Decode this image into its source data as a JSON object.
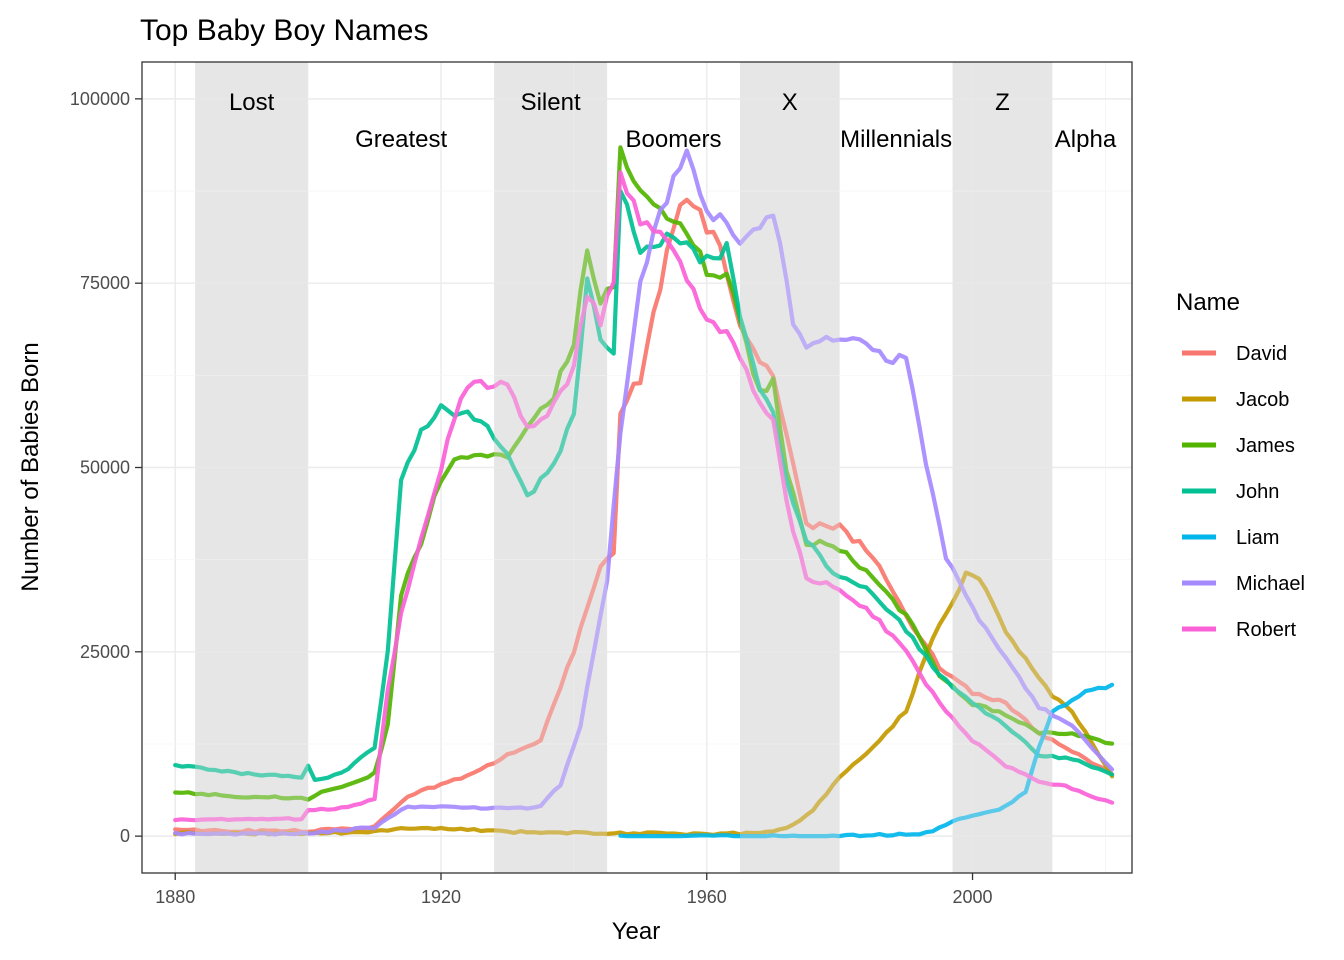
{
  "chart_data": {
    "type": "line",
    "title": "Top Baby Boy Names",
    "xlabel": "Year",
    "ylabel": "Number of Babies Born",
    "xlim": [
      1875,
      2024
    ],
    "ylim": [
      -5000,
      105000
    ],
    "x_ticks": [
      1880,
      1920,
      1960,
      2000
    ],
    "y_ticks": [
      0,
      25000,
      50000,
      75000,
      100000
    ],
    "grid": true,
    "legend": {
      "title": "Name",
      "position": "right"
    },
    "generations": [
      {
        "label": "Lost",
        "start": 1883,
        "end": 1900,
        "shaded": true,
        "row": 1
      },
      {
        "label": "Greatest",
        "start": 1901,
        "end": 1927,
        "shaded": false,
        "row": 2
      },
      {
        "label": "Silent",
        "start": 1928,
        "end": 1945,
        "shaded": true,
        "row": 1
      },
      {
        "label": "Boomers",
        "start": 1946,
        "end": 1964,
        "shaded": false,
        "row": 2
      },
      {
        "label": "X",
        "start": 1965,
        "end": 1980,
        "shaded": true,
        "row": 1
      },
      {
        "label": "Millennials",
        "start": 1981,
        "end": 1996,
        "shaded": false,
        "row": 2
      },
      {
        "label": "Z",
        "start": 1997,
        "end": 2012,
        "shaded": true,
        "row": 1
      },
      {
        "label": "Alpha",
        "start": 2013,
        "end": 2021,
        "shaded": false,
        "row": 2
      }
    ],
    "series": [
      {
        "name": "David",
        "color": "#F8766D",
        "start_year": 1880,
        "points": [
          [
            1880,
            870
          ],
          [
            1890,
            700
          ],
          [
            1900,
            700
          ],
          [
            1910,
            1200
          ],
          [
            1915,
            5500
          ],
          [
            1920,
            7000
          ],
          [
            1925,
            8500
          ],
          [
            1930,
            11000
          ],
          [
            1935,
            13000
          ],
          [
            1940,
            25000
          ],
          [
            1944,
            37000
          ],
          [
            1946,
            38000
          ],
          [
            1947,
            58000
          ],
          [
            1950,
            62000
          ],
          [
            1953,
            75000
          ],
          [
            1956,
            86000
          ],
          [
            1959,
            84000
          ],
          [
            1962,
            80000
          ],
          [
            1965,
            70000
          ],
          [
            1968,
            65000
          ],
          [
            1970,
            62000
          ],
          [
            1972,
            55000
          ],
          [
            1975,
            42000
          ],
          [
            1980,
            42000
          ],
          [
            1985,
            38000
          ],
          [
            1990,
            30000
          ],
          [
            1995,
            23000
          ],
          [
            2000,
            19500
          ],
          [
            2005,
            18000
          ],
          [
            2010,
            14000
          ],
          [
            2015,
            11500
          ],
          [
            2021,
            8500
          ]
        ]
      },
      {
        "name": "Jacob",
        "color": "#C49A00",
        "start_year": 1880,
        "points": [
          [
            1880,
            400
          ],
          [
            1890,
            380
          ],
          [
            1900,
            350
          ],
          [
            1910,
            600
          ],
          [
            1915,
            1100
          ],
          [
            1920,
            1000
          ],
          [
            1925,
            900
          ],
          [
            1930,
            600
          ],
          [
            1940,
            450
          ],
          [
            1950,
            350
          ],
          [
            1960,
            300
          ],
          [
            1968,
            400
          ],
          [
            1972,
            1000
          ],
          [
            1976,
            3500
          ],
          [
            1980,
            8000
          ],
          [
            1985,
            12000
          ],
          [
            1990,
            17000
          ],
          [
            1994,
            27000
          ],
          [
            1997,
            32000
          ],
          [
            1999,
            35500
          ],
          [
            2001,
            35000
          ],
          [
            2005,
            28000
          ],
          [
            2008,
            24000
          ],
          [
            2012,
            19000
          ],
          [
            2015,
            17000
          ],
          [
            2021,
            8000
          ]
        ]
      },
      {
        "name": "James",
        "color": "#53B400",
        "start_year": 1880,
        "points": [
          [
            1880,
            5900
          ],
          [
            1890,
            5400
          ],
          [
            1899,
            5200
          ],
          [
            1900,
            5000
          ],
          [
            1902,
            6000
          ],
          [
            1905,
            6500
          ],
          [
            1910,
            8500
          ],
          [
            1912,
            15000
          ],
          [
            1914,
            33000
          ],
          [
            1917,
            40000
          ],
          [
            1919,
            46000
          ],
          [
            1921,
            50000
          ],
          [
            1925,
            52000
          ],
          [
            1930,
            52000
          ],
          [
            1933,
            55000
          ],
          [
            1937,
            60000
          ],
          [
            1940,
            67000
          ],
          [
            1942,
            80000
          ],
          [
            1944,
            73000
          ],
          [
            1946,
            75000
          ],
          [
            1947,
            94000
          ],
          [
            1950,
            87000
          ],
          [
            1955,
            84000
          ],
          [
            1960,
            77000
          ],
          [
            1963,
            76000
          ],
          [
            1965,
            70000
          ],
          [
            1968,
            60000
          ],
          [
            1970,
            62000
          ],
          [
            1972,
            50000
          ],
          [
            1975,
            40000
          ],
          [
            1980,
            39000
          ],
          [
            1985,
            35000
          ],
          [
            1990,
            30000
          ],
          [
            1995,
            22000
          ],
          [
            2000,
            18000
          ],
          [
            2005,
            16500
          ],
          [
            2010,
            14000
          ],
          [
            2015,
            14000
          ],
          [
            2021,
            12400
          ]
        ]
      },
      {
        "name": "John",
        "color": "#00C094",
        "start_year": 1880,
        "points": [
          [
            1880,
            9600
          ],
          [
            1890,
            8500
          ],
          [
            1899,
            8000
          ],
          [
            1900,
            9500
          ],
          [
            1901,
            7500
          ],
          [
            1905,
            8500
          ],
          [
            1910,
            12000
          ],
          [
            1912,
            25000
          ],
          [
            1914,
            48000
          ],
          [
            1917,
            55000
          ],
          [
            1920,
            58000
          ],
          [
            1925,
            57000
          ],
          [
            1930,
            52000
          ],
          [
            1933,
            46000
          ],
          [
            1937,
            50000
          ],
          [
            1940,
            57000
          ],
          [
            1942,
            75000
          ],
          [
            1944,
            68000
          ],
          [
            1946,
            65000
          ],
          [
            1947,
            87000
          ],
          [
            1950,
            80000
          ],
          [
            1955,
            81000
          ],
          [
            1960,
            78000
          ],
          [
            1963,
            80000
          ],
          [
            1965,
            70000
          ],
          [
            1968,
            60000
          ],
          [
            1970,
            58000
          ],
          [
            1972,
            48000
          ],
          [
            1975,
            40000
          ],
          [
            1980,
            35000
          ],
          [
            1985,
            33000
          ],
          [
            1990,
            28000
          ],
          [
            1995,
            22000
          ],
          [
            2000,
            18000
          ],
          [
            2005,
            15000
          ],
          [
            2010,
            11000
          ],
          [
            2015,
            10500
          ],
          [
            2021,
            8300
          ]
        ]
      },
      {
        "name": "Liam",
        "color": "#00B6EB",
        "start_year": 1947,
        "points": [
          [
            1947,
            0
          ],
          [
            1960,
            0
          ],
          [
            1980,
            0
          ],
          [
            1993,
            400
          ],
          [
            1997,
            2000
          ],
          [
            2000,
            2700
          ],
          [
            2005,
            4000
          ],
          [
            2008,
            6000
          ],
          [
            2010,
            12000
          ],
          [
            2012,
            17000
          ],
          [
            2015,
            18500
          ],
          [
            2018,
            20000
          ],
          [
            2021,
            20300
          ]
        ]
      },
      {
        "name": "Michael",
        "color": "#A58AFF",
        "start_year": 1880,
        "points": [
          [
            1880,
            350
          ],
          [
            1900,
            350
          ],
          [
            1910,
            1200
          ],
          [
            1915,
            4000
          ],
          [
            1920,
            4000
          ],
          [
            1925,
            3800
          ],
          [
            1930,
            3700
          ],
          [
            1935,
            4000
          ],
          [
            1938,
            7000
          ],
          [
            1941,
            15000
          ],
          [
            1943,
            25000
          ],
          [
            1945,
            35000
          ],
          [
            1947,
            55000
          ],
          [
            1950,
            75000
          ],
          [
            1953,
            85000
          ],
          [
            1957,
            92500
          ],
          [
            1960,
            84000
          ],
          [
            1962,
            85000
          ],
          [
            1965,
            80000
          ],
          [
            1968,
            83000
          ],
          [
            1970,
            85000
          ],
          [
            1973,
            70000
          ],
          [
            1975,
            67000
          ],
          [
            1980,
            68000
          ],
          [
            1985,
            66000
          ],
          [
            1988,
            64000
          ],
          [
            1990,
            65000
          ],
          [
            1993,
            50000
          ],
          [
            1996,
            38000
          ],
          [
            2000,
            31000
          ],
          [
            2005,
            24000
          ],
          [
            2010,
            17500
          ],
          [
            2015,
            15000
          ],
          [
            2021,
            9000
          ]
        ]
      },
      {
        "name": "Robert",
        "color": "#FB61D7",
        "start_year": 1880,
        "points": [
          [
            1880,
            2200
          ],
          [
            1890,
            2300
          ],
          [
            1899,
            2300
          ],
          [
            1900,
            3500
          ],
          [
            1905,
            3800
          ],
          [
            1910,
            5000
          ],
          [
            1912,
            20000
          ],
          [
            1914,
            30000
          ],
          [
            1917,
            40000
          ],
          [
            1920,
            50000
          ],
          [
            1923,
            60000
          ],
          [
            1926,
            61500
          ],
          [
            1930,
            61000
          ],
          [
            1933,
            55000
          ],
          [
            1935,
            56000
          ],
          [
            1938,
            60000
          ],
          [
            1940,
            64000
          ],
          [
            1942,
            74000
          ],
          [
            1944,
            70000
          ],
          [
            1946,
            75000
          ],
          [
            1947,
            89000
          ],
          [
            1950,
            84000
          ],
          [
            1955,
            80000
          ],
          [
            1960,
            70000
          ],
          [
            1963,
            68000
          ],
          [
            1965,
            65000
          ],
          [
            1967,
            60000
          ],
          [
            1970,
            57000
          ],
          [
            1972,
            45000
          ],
          [
            1975,
            35000
          ],
          [
            1980,
            33500
          ],
          [
            1985,
            30000
          ],
          [
            1990,
            25000
          ],
          [
            1995,
            18000
          ],
          [
            2000,
            13000
          ],
          [
            2005,
            9500
          ],
          [
            2010,
            7500
          ],
          [
            2015,
            6500
          ],
          [
            2021,
            4400
          ]
        ]
      }
    ]
  }
}
